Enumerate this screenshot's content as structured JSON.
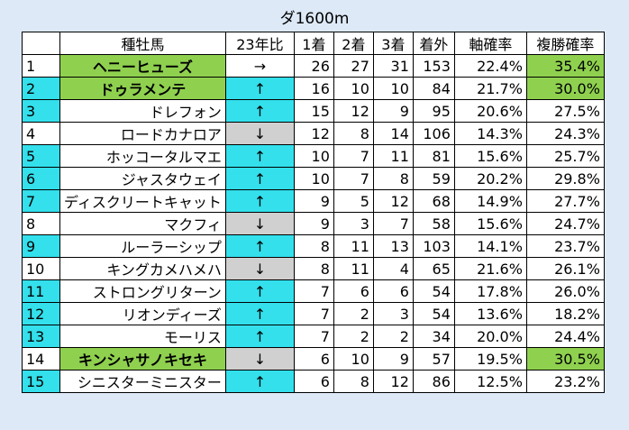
{
  "title": "ダ1600m",
  "headers": [
    "",
    "種牡馬",
    "23年比",
    "1着",
    "2着",
    "3着",
    "着外",
    "軸確率",
    "複勝確率"
  ],
  "colors": {
    "background": "#dde9f7",
    "cyan": "#33e0ec",
    "green": "#8fd14f",
    "gray": "#d0d0d0"
  },
  "rows": [
    {
      "rank": "1",
      "horse": "ヘニーヒューズ",
      "trend": "→",
      "w1": "26",
      "w2": "27",
      "w3": "31",
      "out": "153",
      "axis": "22.4%",
      "place": "35.4%"
    },
    {
      "rank": "2",
      "horse": "ドゥラメンテ",
      "trend": "↑",
      "w1": "16",
      "w2": "10",
      "w3": "10",
      "out": "84",
      "axis": "21.7%",
      "place": "30.0%"
    },
    {
      "rank": "3",
      "horse": "ドレフォン",
      "trend": "↑",
      "w1": "15",
      "w2": "12",
      "w3": "9",
      "out": "95",
      "axis": "20.6%",
      "place": "27.5%"
    },
    {
      "rank": "4",
      "horse": "ロードカナロア",
      "trend": "↓",
      "w1": "12",
      "w2": "8",
      "w3": "14",
      "out": "106",
      "axis": "14.3%",
      "place": "24.3%"
    },
    {
      "rank": "5",
      "horse": "ホッコータルマエ",
      "trend": "↑",
      "w1": "10",
      "w2": "7",
      "w3": "11",
      "out": "81",
      "axis": "15.6%",
      "place": "25.7%"
    },
    {
      "rank": "6",
      "horse": "ジャスタウェイ",
      "trend": "↑",
      "w1": "10",
      "w2": "7",
      "w3": "8",
      "out": "59",
      "axis": "20.2%",
      "place": "29.8%"
    },
    {
      "rank": "7",
      "horse": "ディスクリートキャット",
      "trend": "↑",
      "w1": "9",
      "w2": "5",
      "w3": "12",
      "out": "68",
      "axis": "14.9%",
      "place": "27.7%"
    },
    {
      "rank": "8",
      "horse": "マクフィ",
      "trend": "↓",
      "w1": "9",
      "w2": "3",
      "w3": "7",
      "out": "58",
      "axis": "15.6%",
      "place": "24.7%"
    },
    {
      "rank": "9",
      "horse": "ルーラーシップ",
      "trend": "↑",
      "w1": "8",
      "w2": "11",
      "w3": "13",
      "out": "103",
      "axis": "14.1%",
      "place": "23.7%"
    },
    {
      "rank": "10",
      "horse": "キングカメハメハ",
      "trend": "↓",
      "w1": "8",
      "w2": "11",
      "w3": "4",
      "out": "65",
      "axis": "21.6%",
      "place": "26.1%"
    },
    {
      "rank": "11",
      "horse": "ストロングリターン",
      "trend": "↑",
      "w1": "7",
      "w2": "6",
      "w3": "6",
      "out": "54",
      "axis": "17.8%",
      "place": "26.0%"
    },
    {
      "rank": "12",
      "horse": "リオンディーズ",
      "trend": "↑",
      "w1": "7",
      "w2": "2",
      "w3": "3",
      "out": "54",
      "axis": "13.6%",
      "place": "18.2%"
    },
    {
      "rank": "13",
      "horse": "モーリス",
      "trend": "↑",
      "w1": "7",
      "w2": "2",
      "w3": "2",
      "out": "34",
      "axis": "20.0%",
      "place": "24.4%"
    },
    {
      "rank": "14",
      "horse": "キンシャサノキセキ",
      "trend": "↓",
      "w1": "6",
      "w2": "10",
      "w3": "9",
      "out": "57",
      "axis": "19.5%",
      "place": "30.5%"
    },
    {
      "rank": "15",
      "horse": "シニスターミニスター",
      "trend": "↑",
      "w1": "6",
      "w2": "8",
      "w3": "12",
      "out": "86",
      "axis": "12.5%",
      "place": "23.2%"
    }
  ]
}
